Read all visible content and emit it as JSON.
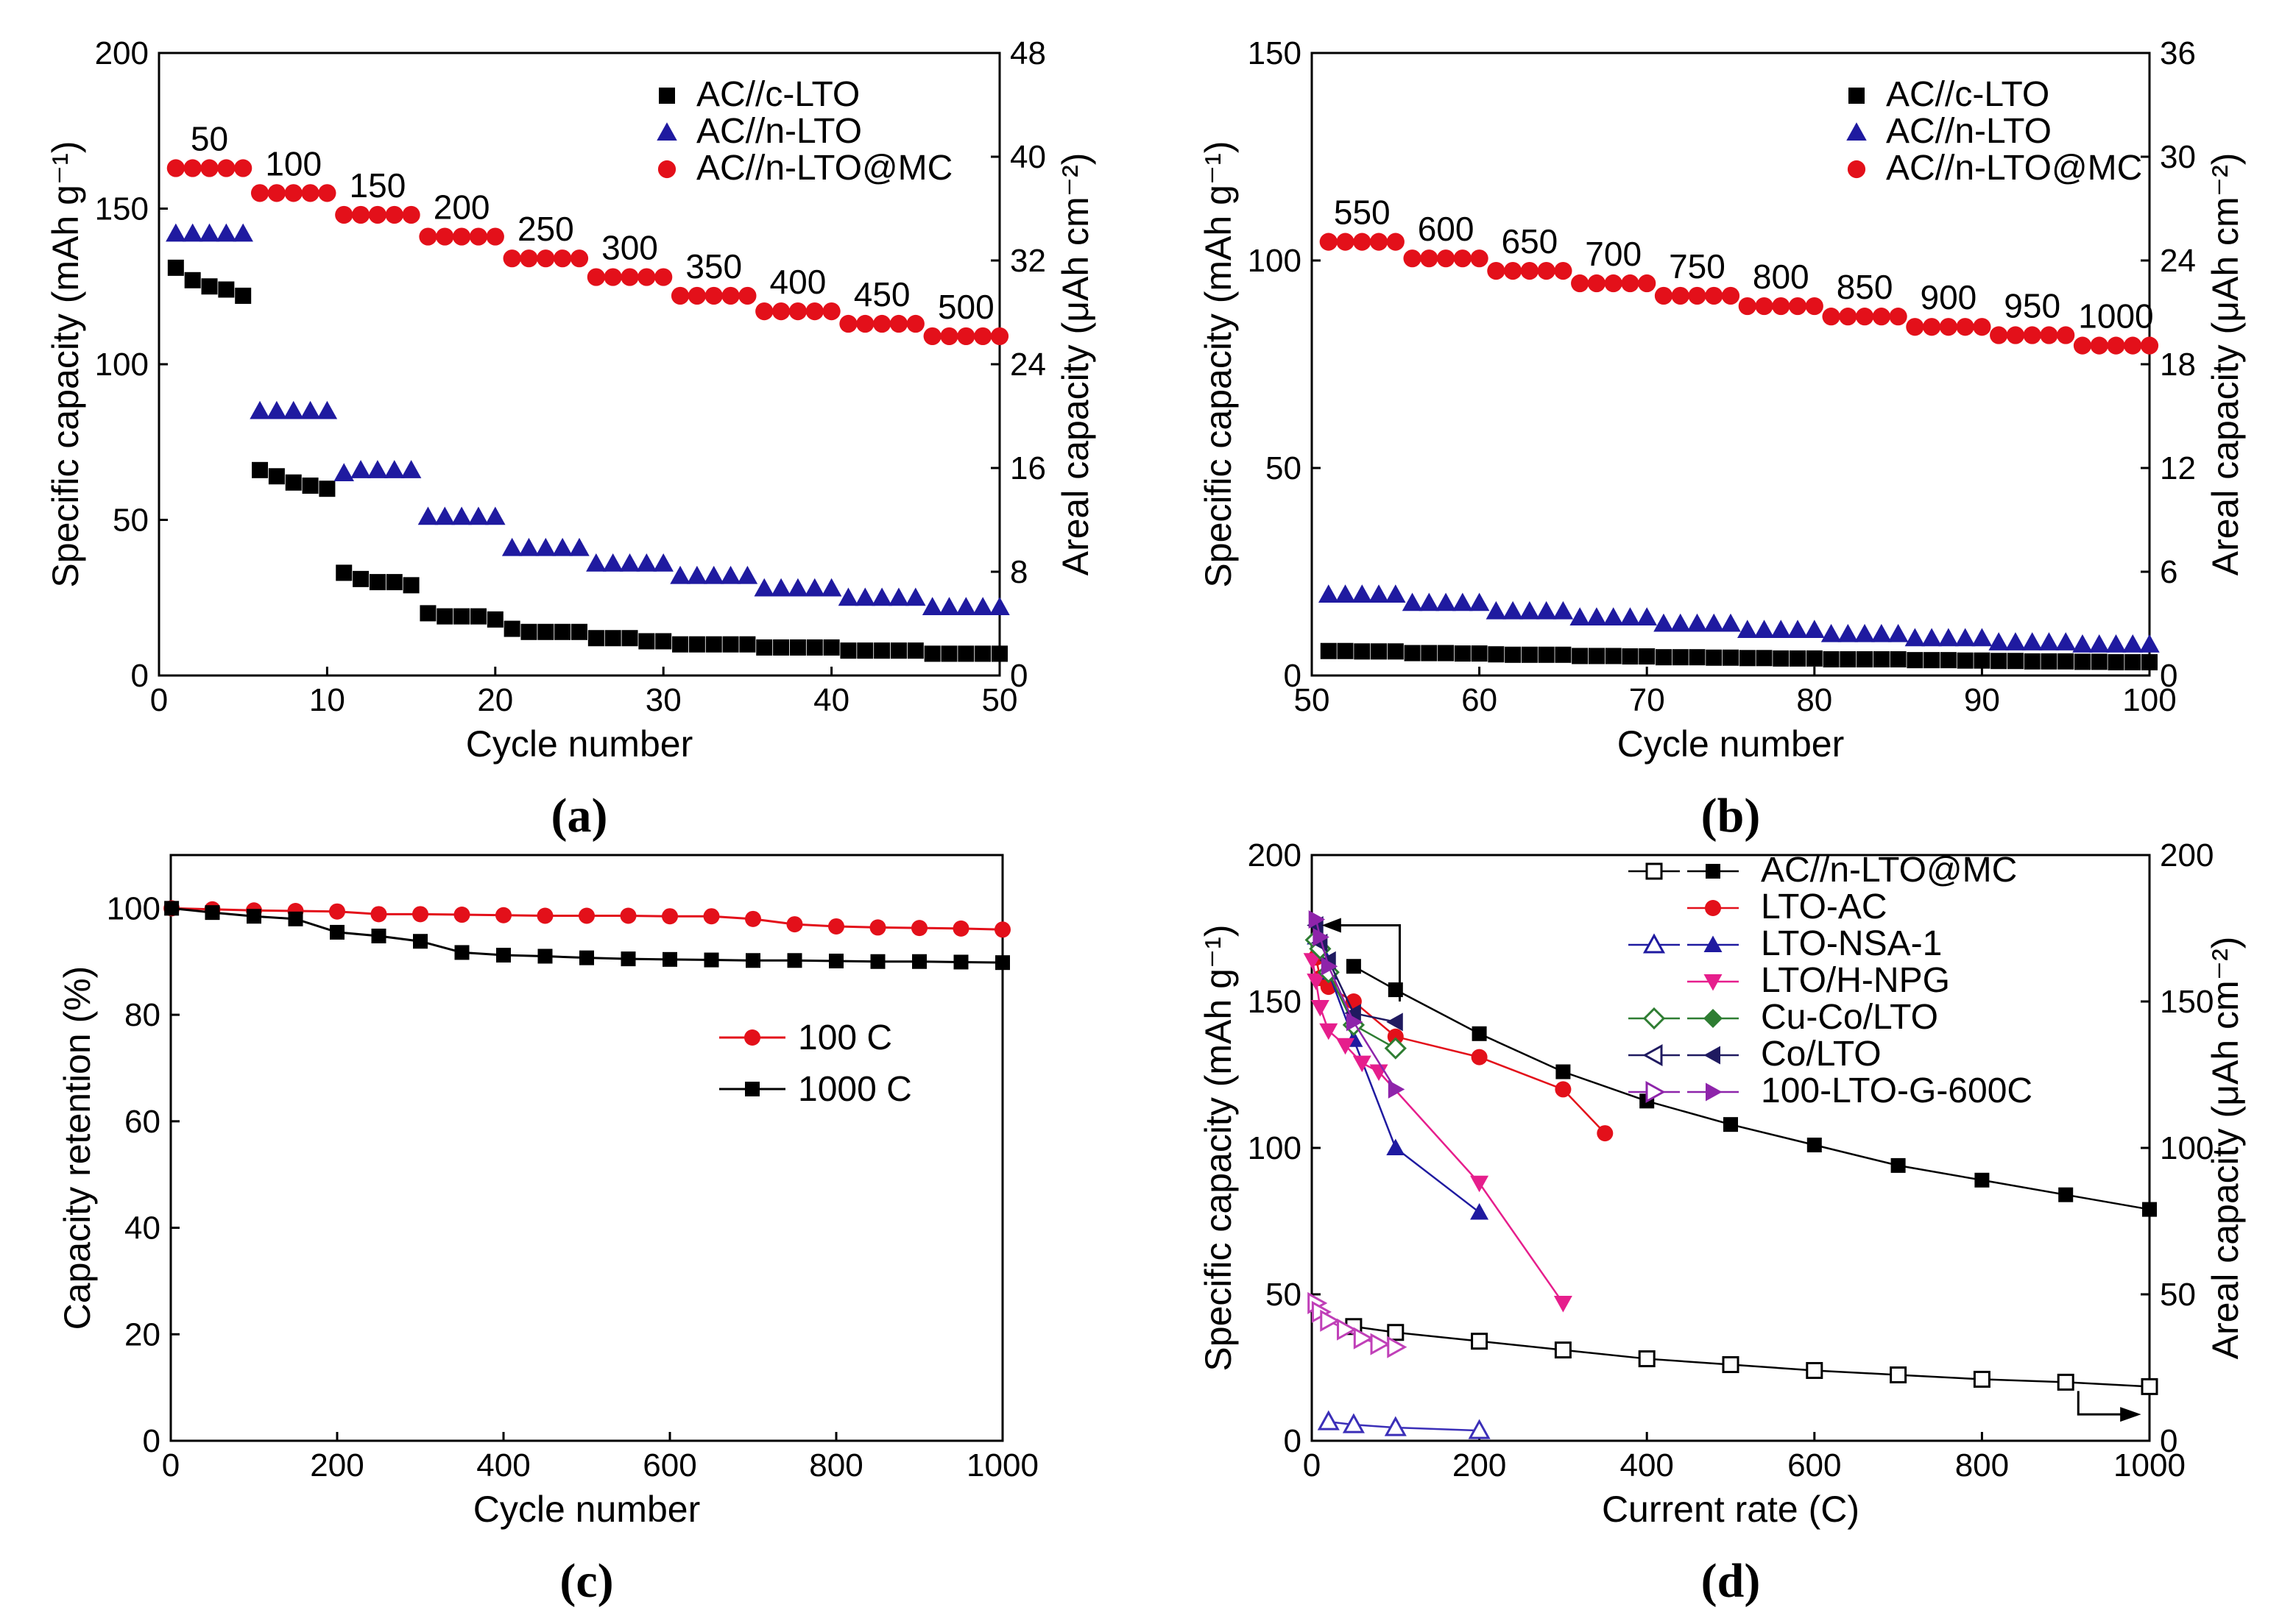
{
  "chart_data": [
    {
      "id": "a",
      "panel_label": "(a)",
      "type": "scatter",
      "xlabel": "Cycle number",
      "ylabel": "Specific capacity (mAh g⁻¹)",
      "y2label": "Areal capacity (μAh cm⁻²)",
      "xlim": [
        0,
        50
      ],
      "ylim": [
        0,
        200
      ],
      "y2lim": [
        0,
        48
      ],
      "xticks": [
        0,
        10,
        20,
        30,
        40,
        50
      ],
      "yticks": [
        0,
        50,
        100,
        150,
        200
      ],
      "y2ticks": [
        0,
        8,
        16,
        24,
        32,
        40,
        48
      ],
      "rate_labels": [
        "50",
        "100",
        "150",
        "200",
        "250",
        "300",
        "350",
        "400",
        "450",
        "500"
      ],
      "legend": [
        "AC//c-LTO",
        "AC//n-LTO",
        "AC//n-LTO@MC"
      ],
      "series": [
        {
          "name": "AC//c-LTO",
          "color": "#000000",
          "marker": "square",
          "values": [
            131,
            127,
            125,
            124,
            122,
            66,
            64,
            62,
            61,
            60,
            33,
            31,
            30,
            30,
            29,
            20,
            19,
            19,
            19,
            18,
            15,
            14,
            14,
            14,
            14,
            12,
            12,
            12,
            11,
            11,
            10,
            10,
            10,
            10,
            10,
            9,
            9,
            9,
            9,
            9,
            8,
            8,
            8,
            8,
            8,
            7,
            7,
            7,
            7,
            7
          ]
        },
        {
          "name": "AC//n-LTO",
          "color": "#1f1aa0",
          "marker": "triangle",
          "values": [
            142,
            142,
            142,
            142,
            142,
            85,
            85,
            85,
            85,
            85,
            65,
            66,
            66,
            66,
            66,
            51,
            51,
            51,
            51,
            51,
            41,
            41,
            41,
            41,
            41,
            36,
            36,
            36,
            36,
            36,
            32,
            32,
            32,
            32,
            32,
            28,
            28,
            28,
            28,
            28,
            25,
            25,
            25,
            25,
            25,
            22,
            22,
            22,
            22,
            22
          ]
        },
        {
          "name": "AC//n-LTO@MC",
          "color": "#e3101a",
          "marker": "circle",
          "values": [
            163,
            163,
            163,
            163,
            163,
            155,
            155,
            155,
            155,
            155,
            148,
            148,
            148,
            148,
            148,
            141,
            141,
            141,
            141,
            141,
            134,
            134,
            134,
            134,
            134,
            128,
            128,
            128,
            128,
            128,
            122,
            122,
            122,
            122,
            122,
            117,
            117,
            117,
            117,
            117,
            113,
            113,
            113,
            113,
            113,
            109,
            109,
            109,
            109,
            109
          ]
        }
      ]
    },
    {
      "id": "b",
      "panel_label": "(b)",
      "type": "scatter",
      "xlabel": "Cycle number",
      "ylabel": "Specific capacity (mAh g⁻¹)",
      "y2label": "Areal capacity (μAh cm⁻²)",
      "xlim": [
        50,
        100
      ],
      "ylim": [
        0,
        150
      ],
      "y2lim": [
        0,
        36
      ],
      "xticks": [
        50,
        60,
        70,
        80,
        90,
        100
      ],
      "yticks": [
        0,
        50,
        100,
        150
      ],
      "y2ticks": [
        0,
        6,
        12,
        18,
        24,
        30,
        36
      ],
      "rate_labels": [
        "550",
        "600",
        "650",
        "700",
        "750",
        "800",
        "850",
        "900",
        "950",
        "1000"
      ],
      "legend": [
        "AC//c-LTO",
        "AC//n-LTO",
        "AC//n-LTO@MC"
      ],
      "series": [
        {
          "name": "AC//c-LTO",
          "color": "#000000",
          "marker": "square",
          "values": [
            5.9,
            5.9,
            5.8,
            5.8,
            5.8,
            5.4,
            5.4,
            5.4,
            5.3,
            5.3,
            5.1,
            5.0,
            5.0,
            5.0,
            5.0,
            4.7,
            4.7,
            4.7,
            4.6,
            4.6,
            4.4,
            4.4,
            4.4,
            4.3,
            4.3,
            4.2,
            4.2,
            4.1,
            4.1,
            4.1,
            3.9,
            3.9,
            3.9,
            3.9,
            3.9,
            3.7,
            3.7,
            3.7,
            3.6,
            3.6,
            3.5,
            3.5,
            3.4,
            3.4,
            3.4,
            3.3,
            3.3,
            3.2,
            3.2,
            3.2
          ]
        },
        {
          "name": "AC//n-LTO",
          "color": "#1f1aa0",
          "marker": "triangle",
          "values": [
            19.5,
            19.5,
            19.5,
            19.5,
            19.5,
            17.5,
            17.5,
            17.5,
            17.5,
            17.5,
            15.5,
            15.5,
            15.5,
            15.5,
            15.5,
            14,
            14,
            14,
            14,
            14,
            12.5,
            12.5,
            12.5,
            12.5,
            12.5,
            11,
            11,
            11,
            11,
            11,
            10,
            10,
            10,
            10,
            10,
            9,
            9,
            9,
            9,
            9,
            8,
            8,
            8,
            8,
            8,
            7.5,
            7.5,
            7.5,
            7.5,
            7.5
          ]
        },
        {
          "name": "AC//n-LTO@MC",
          "color": "#e3101a",
          "marker": "circle",
          "values": [
            104.5,
            104.5,
            104.5,
            104.5,
            104.5,
            100.5,
            100.5,
            100.5,
            100.5,
            100.5,
            97.5,
            97.5,
            97.5,
            97.5,
            97.5,
            94.5,
            94.5,
            94.5,
            94.5,
            94.5,
            91.5,
            91.5,
            91.5,
            91.5,
            91.5,
            89,
            89,
            89,
            89,
            89,
            86.5,
            86.5,
            86.5,
            86.5,
            86.5,
            84,
            84,
            84,
            84,
            84,
            82,
            82,
            82,
            82,
            82,
            79.5,
            79.5,
            79.5,
            79.5,
            79.5
          ]
        }
      ]
    },
    {
      "id": "c",
      "panel_label": "(c)",
      "type": "line",
      "xlabel": "Cycle number",
      "ylabel": "Capacity retention (%)",
      "xlim": [
        0,
        1000
      ],
      "ylim": [
        0,
        110
      ],
      "xticks": [
        0,
        200,
        400,
        600,
        800,
        1000
      ],
      "yticks": [
        0,
        20,
        40,
        60,
        80,
        100
      ],
      "legend": [
        "100 C",
        "1000 C"
      ],
      "x": [
        1,
        50,
        100,
        150,
        200,
        250,
        300,
        350,
        400,
        450,
        500,
        550,
        600,
        650,
        700,
        750,
        800,
        850,
        900,
        950,
        1000
      ],
      "series": [
        {
          "name": "100 C",
          "color": "#e3101a",
          "marker": "circle",
          "values": [
            100,
            99.8,
            99.6,
            99.5,
            99.4,
            98.9,
            98.9,
            98.8,
            98.7,
            98.6,
            98.6,
            98.6,
            98.5,
            98.5,
            98.0,
            97.0,
            96.6,
            96.4,
            96.3,
            96.2,
            96.0
          ]
        },
        {
          "name": "1000 C",
          "color": "#000000",
          "marker": "square",
          "values": [
            100,
            99.2,
            98.5,
            98.0,
            95.5,
            94.8,
            93.8,
            91.7,
            91.2,
            91.0,
            90.7,
            90.5,
            90.4,
            90.3,
            90.2,
            90.2,
            90.1,
            90.0,
            90.0,
            89.9,
            89.8
          ]
        }
      ]
    },
    {
      "id": "d",
      "panel_label": "(d)",
      "type": "line",
      "xlabel": "Current rate (C)",
      "ylabel": "Specific capacity (mAh g⁻¹)",
      "y2label": "Areal capacity (μAh cm⁻²)",
      "xlim": [
        0,
        1000
      ],
      "ylim": [
        0,
        200
      ],
      "y2lim": [
        0,
        200
      ],
      "xticks": [
        0,
        200,
        400,
        600,
        800,
        1000
      ],
      "yticks": [
        0,
        50,
        100,
        150,
        200
      ],
      "y2ticks": [
        0,
        50,
        100,
        150,
        200
      ],
      "legend": [
        "AC//n-LTO@MC",
        "LTO-AC",
        "LTO-NSA-1",
        "LTO/H-NPG",
        "Cu-Co/LTO",
        "Co/LTO",
        "100-LTO-G-600C"
      ],
      "series": [
        {
          "name": "AC//n-LTO@MC",
          "color": "#000000",
          "marker": "square",
          "axis": "specific",
          "x": [
            50,
            100,
            200,
            300,
            400,
            500,
            600,
            700,
            800,
            900,
            1000
          ],
          "values": [
            162,
            154,
            139,
            126,
            116,
            108,
            101,
            94,
            89,
            84,
            79
          ]
        },
        {
          "name": "AC//n-LTO@MC",
          "color": "#000000",
          "marker": "square-open",
          "axis": "areal",
          "x": [
            50,
            100,
            200,
            300,
            400,
            500,
            600,
            700,
            800,
            900,
            1000
          ],
          "values": [
            39,
            37,
            34,
            31,
            28,
            26,
            24,
            22.5,
            21,
            20,
            18.5
          ]
        },
        {
          "name": "LTO-AC",
          "color": "#e3101a",
          "marker": "circle",
          "axis": "specific",
          "x": [
            5,
            10,
            20,
            50,
            100,
            200,
            300,
            350
          ],
          "values": [
            165,
            158,
            155,
            150,
            138,
            131,
            120,
            105
          ]
        },
        {
          "name": "LTO-NSA-1",
          "color": "#1f1aa0",
          "marker": "triangle",
          "axis": "specific",
          "x": [
            5,
            10,
            20,
            50,
            100,
            200
          ],
          "values": [
            172,
            168,
            160,
            137,
            100,
            78
          ]
        },
        {
          "name": "LTO-NSA-1",
          "color": "#3b2fb8",
          "marker": "triangle-open",
          "axis": "areal",
          "x": [
            20,
            50,
            100,
            200
          ],
          "values": [
            6.5,
            5.5,
            4.5,
            3.5
          ]
        },
        {
          "name": "LTO/H-NPG",
          "color": "#e61e8c",
          "marker": "triangle-down",
          "axis": "specific",
          "x": [
            1,
            5,
            10,
            20,
            40,
            60,
            80,
            200,
            300
          ],
          "values": [
            164,
            157,
            148,
            140,
            135,
            129,
            126,
            88,
            47
          ]
        },
        {
          "name": "Cu-Co/LTO",
          "color": "#2e7d32",
          "marker": "diamond-open",
          "axis": "specific",
          "x": [
            5,
            10,
            20,
            50,
            100
          ],
          "values": [
            171,
            168,
            160,
            142,
            134
          ]
        },
        {
          "name": "Co/LTO",
          "color": "#1f1a60",
          "marker": "triangle-left",
          "axis": "specific",
          "x": [
            5,
            10,
            20,
            50,
            100
          ],
          "values": [
            176,
            170,
            164,
            146,
            143
          ]
        },
        {
          "name": "100-LTO-G-600C",
          "color": "#8e24aa",
          "marker": "triangle-right",
          "axis": "specific",
          "x": [
            5,
            10,
            20,
            50,
            100
          ],
          "values": [
            178,
            172,
            162,
            143,
            120
          ]
        },
        {
          "name": "100-LTO-G-600C",
          "color": "#c040b8",
          "marker": "triangle-right-open",
          "axis": "areal",
          "x": [
            5,
            10,
            20,
            40,
            60,
            80,
            100
          ],
          "values": [
            47,
            44,
            41,
            38,
            35,
            33,
            32
          ]
        }
      ]
    }
  ]
}
